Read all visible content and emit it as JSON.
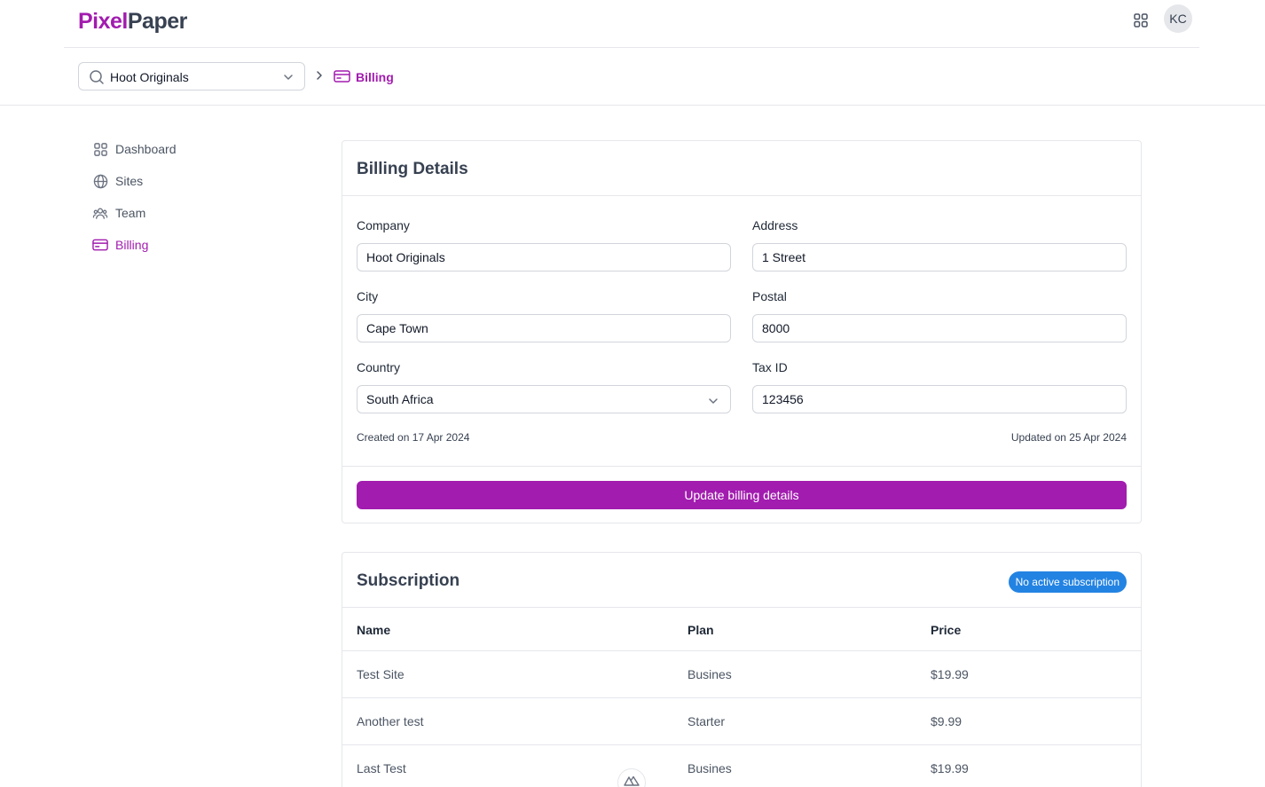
{
  "app": {
    "logo_part1": "Pixel",
    "logo_part2": "Paper",
    "avatar_initials": "KC",
    "accent_color": "#a21caf"
  },
  "team_select": {
    "value": "Hoot Originals"
  },
  "breadcrumb": {
    "current": "Billing"
  },
  "sidebar": {
    "items": [
      {
        "label": "Dashboard",
        "icon": "dashboard-icon",
        "active": false
      },
      {
        "label": "Sites",
        "icon": "globe-icon",
        "active": false
      },
      {
        "label": "Team",
        "icon": "team-icon",
        "active": false
      },
      {
        "label": "Billing",
        "icon": "credit-card-icon",
        "active": true
      }
    ]
  },
  "billing": {
    "title": "Billing Details",
    "company": {
      "label": "Company",
      "value": "Hoot Originals"
    },
    "address": {
      "label": "Address",
      "value": "1 Street"
    },
    "city": {
      "label": "City",
      "value": "Cape Town"
    },
    "postal": {
      "label": "Postal",
      "value": "8000"
    },
    "country": {
      "label": "Country",
      "value": "South Africa"
    },
    "tax_id": {
      "label": "Tax ID",
      "value": "123456"
    },
    "created": "Created on 17 Apr 2024",
    "updated": "Updated on 25 Apr 2024",
    "button": "Update billing details"
  },
  "subscription": {
    "title": "Subscription",
    "badge": "No active subscription",
    "badge_color": "#2383e2",
    "columns": [
      "Name",
      "Plan",
      "Price"
    ],
    "rows": [
      {
        "name": "Test Site",
        "plan": "Busines",
        "price": "$19.99"
      },
      {
        "name": "Another test",
        "plan": "Starter",
        "price": "$9.99"
      },
      {
        "name": "Last Test",
        "plan": "Busines",
        "price": "$19.99"
      }
    ]
  }
}
